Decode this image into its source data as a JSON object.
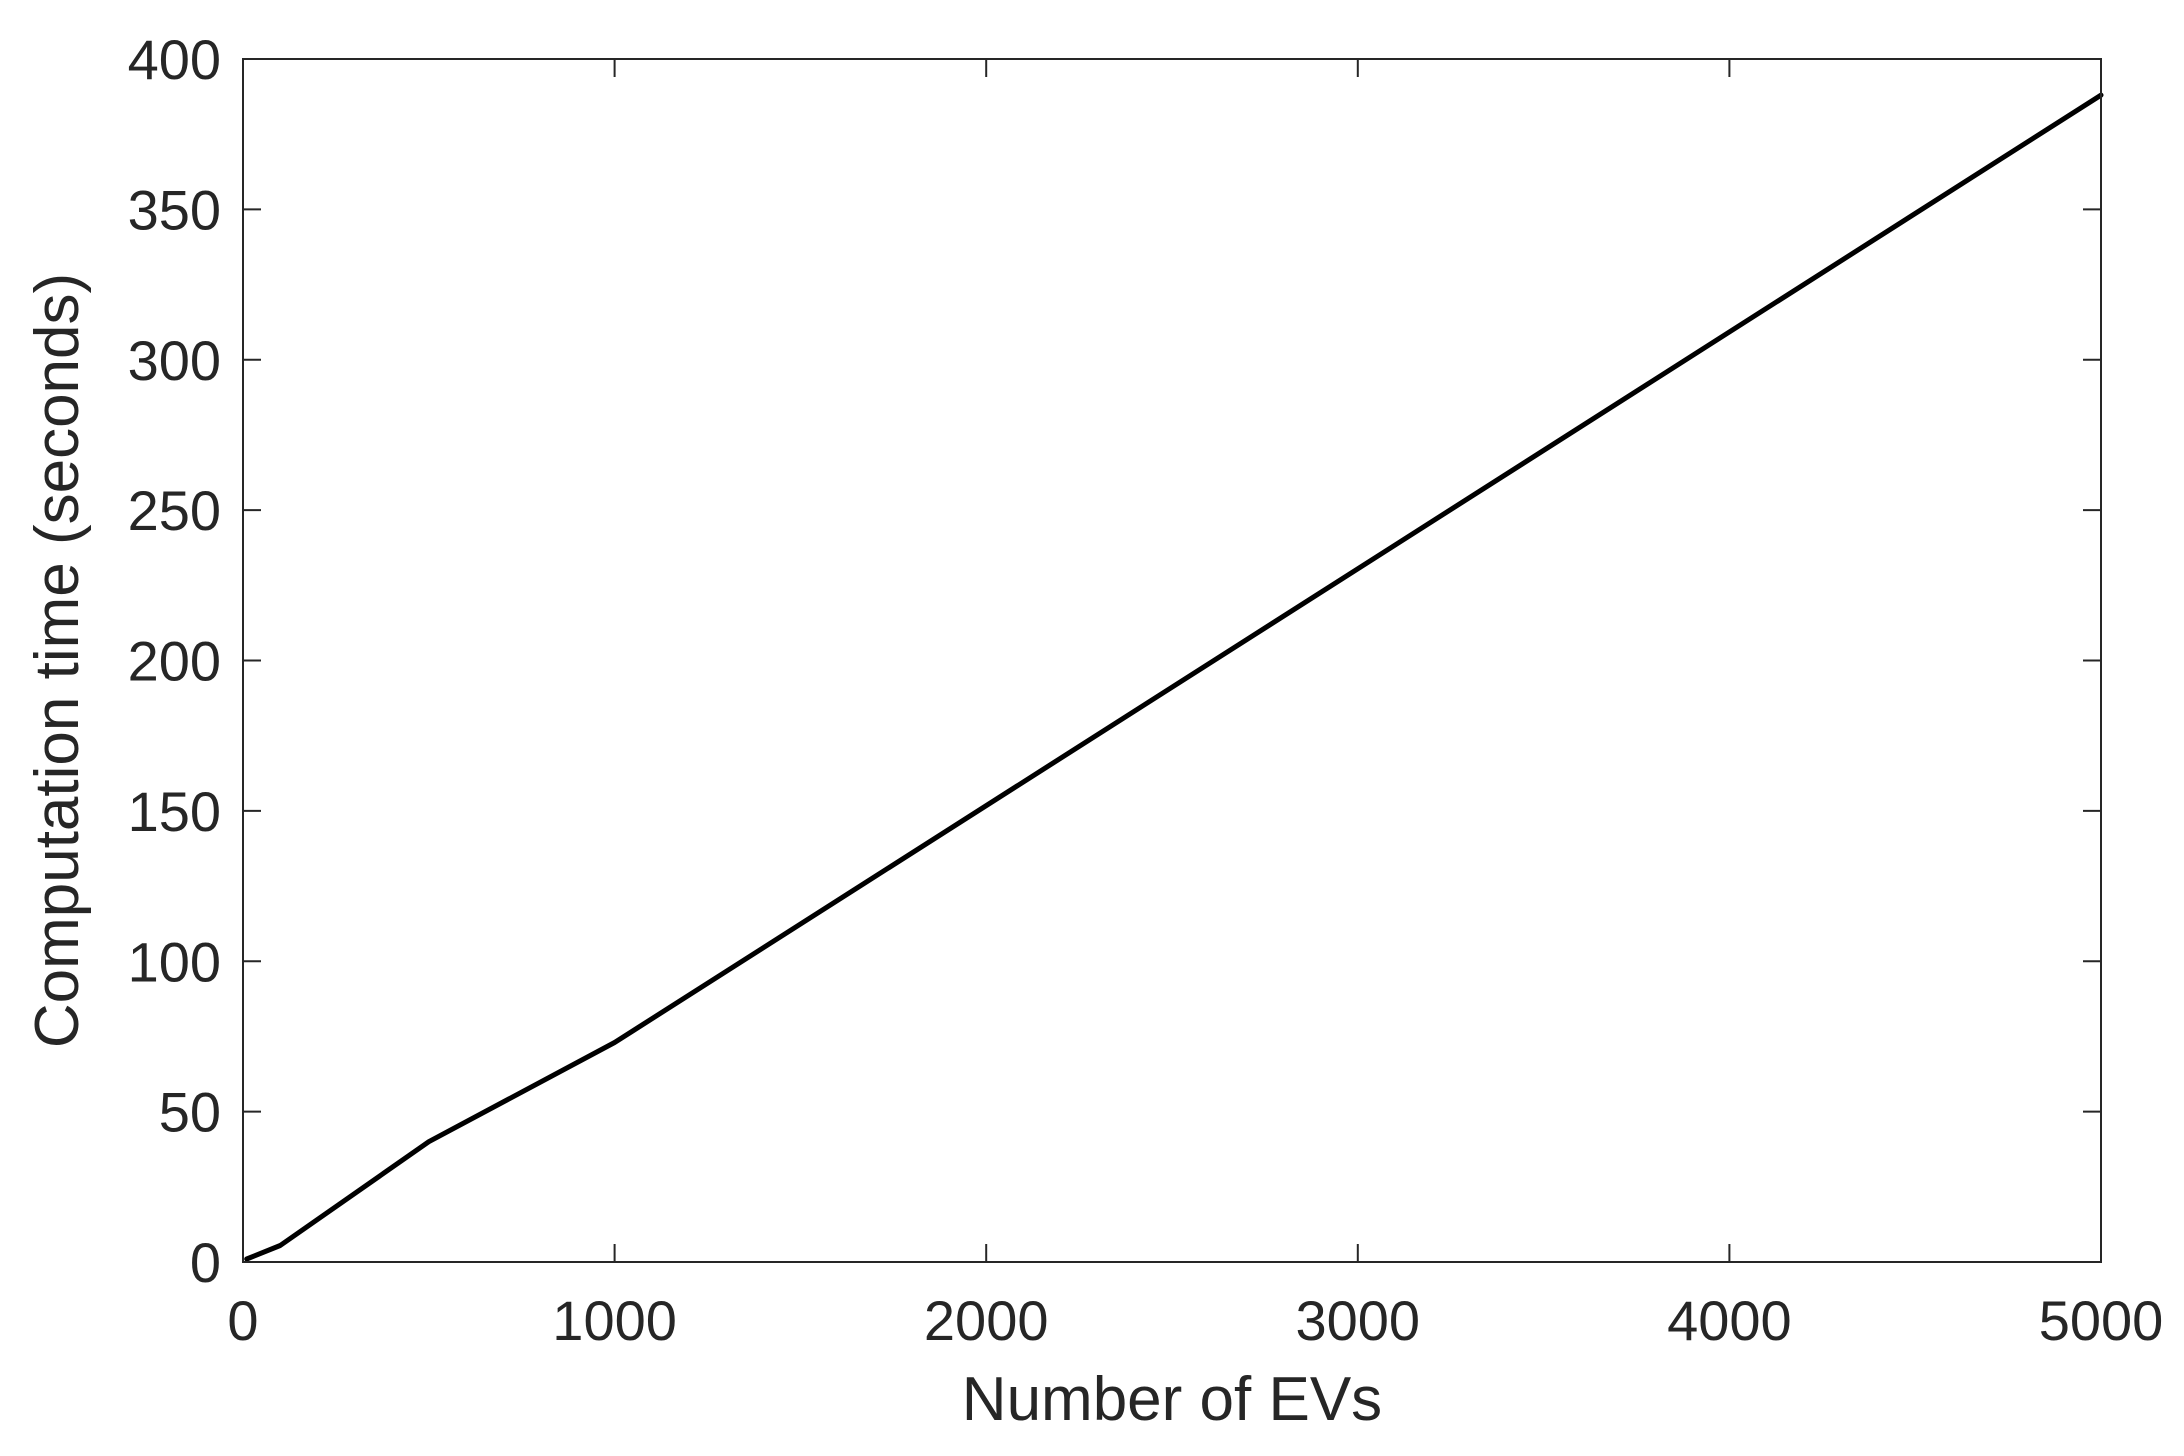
{
  "chart_data": {
    "type": "line",
    "title": "",
    "xlabel": "Number of EVs",
    "ylabel": "Computation time (seconds)",
    "xlim": [
      0,
      5000
    ],
    "ylim": [
      0,
      400
    ],
    "xticks": [
      0,
      1000,
      2000,
      3000,
      4000,
      5000
    ],
    "yticks": [
      0,
      50,
      100,
      150,
      200,
      250,
      300,
      350,
      400
    ],
    "grid": false,
    "legend": "none",
    "series": [
      {
        "color": "#000000",
        "x": [
          10,
          100,
          500,
          1000,
          5000
        ],
        "y": [
          1,
          5.5,
          40,
          73,
          388
        ]
      }
    ]
  }
}
